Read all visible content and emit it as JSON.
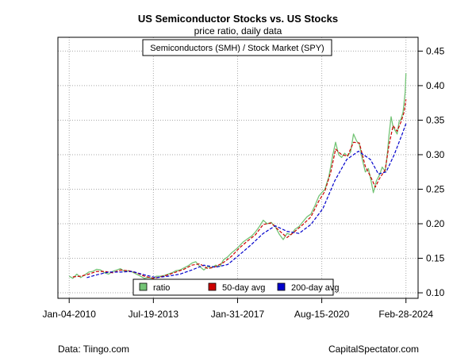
{
  "chart_data": {
    "type": "line",
    "title": "US Semiconductor Stocks vs. US Stocks",
    "subtitle": "price ratio, daily data",
    "annotation": "Semiconductors (SMH) / Stock Market (SPY)",
    "x_tick_labels": [
      "Jan-04-2010",
      "Jul-19-2013",
      "Jan-31-2017",
      "Aug-15-2020",
      "Feb-28-2024"
    ],
    "x_ticks": [
      "2010-01-04",
      "2013-07-19",
      "2017-01-31",
      "2020-08-15",
      "2024-02-28"
    ],
    "xlim": [
      "2009-07-15",
      "2024-09-01"
    ],
    "y_ticks": [
      0.1,
      0.15,
      0.2,
      0.25,
      0.3,
      0.35,
      0.4,
      0.45
    ],
    "y_tick_labels": [
      "0.10",
      "0.15",
      "0.20",
      "0.25",
      "0.30",
      "0.35",
      "0.40",
      "0.45"
    ],
    "ylim": [
      0.092,
      0.47
    ],
    "y_axis_side": "right",
    "grid": true,
    "legend_position": "bottom-center",
    "series": [
      {
        "name": "ratio",
        "color": "#74c476",
        "style": "solid",
        "points": [
          [
            "2010-01-04",
            0.124
          ],
          [
            "2010-03-01",
            0.121
          ],
          [
            "2010-05-01",
            0.127
          ],
          [
            "2010-07-01",
            0.122
          ],
          [
            "2010-09-01",
            0.126
          ],
          [
            "2010-11-01",
            0.13
          ],
          [
            "2011-01-01",
            0.131
          ],
          [
            "2011-03-01",
            0.134
          ],
          [
            "2011-05-01",
            0.133
          ],
          [
            "2011-07-01",
            0.129
          ],
          [
            "2011-09-01",
            0.127
          ],
          [
            "2011-11-01",
            0.131
          ],
          [
            "2012-01-01",
            0.133
          ],
          [
            "2012-03-01",
            0.135
          ],
          [
            "2012-05-01",
            0.131
          ],
          [
            "2012-07-01",
            0.132
          ],
          [
            "2012-09-01",
            0.13
          ],
          [
            "2012-11-01",
            0.127
          ],
          [
            "2013-01-01",
            0.124
          ],
          [
            "2013-03-01",
            0.121
          ],
          [
            "2013-05-01",
            0.122
          ],
          [
            "2013-07-19",
            0.121
          ],
          [
            "2013-09-01",
            0.124
          ],
          [
            "2013-11-01",
            0.124
          ],
          [
            "2014-01-01",
            0.125
          ],
          [
            "2014-03-01",
            0.127
          ],
          [
            "2014-05-01",
            0.129
          ],
          [
            "2014-07-01",
            0.132
          ],
          [
            "2014-09-01",
            0.133
          ],
          [
            "2014-11-01",
            0.136
          ],
          [
            "2015-01-01",
            0.139
          ],
          [
            "2015-03-01",
            0.143
          ],
          [
            "2015-05-01",
            0.145
          ],
          [
            "2015-07-01",
            0.138
          ],
          [
            "2015-09-01",
            0.133
          ],
          [
            "2015-11-01",
            0.138
          ],
          [
            "2016-01-01",
            0.136
          ],
          [
            "2016-03-01",
            0.14
          ],
          [
            "2016-05-01",
            0.138
          ],
          [
            "2016-07-01",
            0.148
          ],
          [
            "2016-09-01",
            0.152
          ],
          [
            "2016-11-01",
            0.158
          ],
          [
            "2017-01-31",
            0.165
          ],
          [
            "2017-03-01",
            0.168
          ],
          [
            "2017-05-01",
            0.174
          ],
          [
            "2017-07-01",
            0.178
          ],
          [
            "2017-09-01",
            0.182
          ],
          [
            "2017-11-01",
            0.188
          ],
          [
            "2018-01-01",
            0.196
          ],
          [
            "2018-03-01",
            0.205
          ],
          [
            "2018-05-01",
            0.2
          ],
          [
            "2018-07-01",
            0.202
          ],
          [
            "2018-09-01",
            0.196
          ],
          [
            "2018-11-01",
            0.185
          ],
          [
            "2019-01-01",
            0.177
          ],
          [
            "2019-03-01",
            0.186
          ],
          [
            "2019-05-01",
            0.184
          ],
          [
            "2019-07-01",
            0.192
          ],
          [
            "2019-09-01",
            0.196
          ],
          [
            "2019-11-01",
            0.203
          ],
          [
            "2020-01-01",
            0.21
          ],
          [
            "2020-03-01",
            0.214
          ],
          [
            "2020-05-01",
            0.226
          ],
          [
            "2020-07-01",
            0.24
          ],
          [
            "2020-08-15",
            0.245
          ],
          [
            "2020-10-01",
            0.25
          ],
          [
            "2020-12-01",
            0.268
          ],
          [
            "2021-02-01",
            0.3
          ],
          [
            "2021-03-15",
            0.318
          ],
          [
            "2021-05-01",
            0.3
          ],
          [
            "2021-06-15",
            0.296
          ],
          [
            "2021-08-01",
            0.302
          ],
          [
            "2021-09-15",
            0.298
          ],
          [
            "2021-11-01",
            0.304
          ],
          [
            "2021-12-15",
            0.33
          ],
          [
            "2022-02-01",
            0.32
          ],
          [
            "2022-03-15",
            0.315
          ],
          [
            "2022-05-01",
            0.292
          ],
          [
            "2022-06-15",
            0.275
          ],
          [
            "2022-08-01",
            0.28
          ],
          [
            "2022-09-15",
            0.26
          ],
          [
            "2022-10-15",
            0.245
          ],
          [
            "2022-12-01",
            0.262
          ],
          [
            "2023-01-15",
            0.27
          ],
          [
            "2023-03-01",
            0.282
          ],
          [
            "2023-04-15",
            0.276
          ],
          [
            "2023-05-15",
            0.298
          ],
          [
            "2023-06-15",
            0.33
          ],
          [
            "2023-07-15",
            0.355
          ],
          [
            "2023-08-15",
            0.34
          ],
          [
            "2023-09-15",
            0.335
          ],
          [
            "2023-10-15",
            0.33
          ],
          [
            "2023-11-15",
            0.348
          ],
          [
            "2023-12-15",
            0.352
          ],
          [
            "2024-01-15",
            0.362
          ],
          [
            "2024-02-15",
            0.39
          ],
          [
            "2024-02-28",
            0.418
          ]
        ]
      },
      {
        "name": "50-day avg",
        "color": "#cc0000",
        "style": "dashed",
        "points": [
          [
            "2010-03-01",
            0.123
          ],
          [
            "2010-07-01",
            0.124
          ],
          [
            "2010-11-01",
            0.127
          ],
          [
            "2011-03-01",
            0.131
          ],
          [
            "2011-07-01",
            0.131
          ],
          [
            "2011-11-01",
            0.129
          ],
          [
            "2012-03-01",
            0.133
          ],
          [
            "2012-07-01",
            0.132
          ],
          [
            "2012-11-01",
            0.129
          ],
          [
            "2013-03-01",
            0.124
          ],
          [
            "2013-07-19",
            0.121
          ],
          [
            "2013-11-01",
            0.123
          ],
          [
            "2014-03-01",
            0.126
          ],
          [
            "2014-07-01",
            0.13
          ],
          [
            "2014-11-01",
            0.134
          ],
          [
            "2015-03-01",
            0.14
          ],
          [
            "2015-07-01",
            0.142
          ],
          [
            "2015-11-01",
            0.135
          ],
          [
            "2016-03-01",
            0.138
          ],
          [
            "2016-07-01",
            0.144
          ],
          [
            "2016-11-01",
            0.153
          ],
          [
            "2017-03-01",
            0.165
          ],
          [
            "2017-07-01",
            0.175
          ],
          [
            "2017-11-01",
            0.184
          ],
          [
            "2018-03-01",
            0.199
          ],
          [
            "2018-07-01",
            0.201
          ],
          [
            "2018-11-01",
            0.19
          ],
          [
            "2019-03-01",
            0.18
          ],
          [
            "2019-07-01",
            0.189
          ],
          [
            "2019-11-01",
            0.199
          ],
          [
            "2020-03-01",
            0.21
          ],
          [
            "2020-07-01",
            0.233
          ],
          [
            "2020-10-01",
            0.247
          ],
          [
            "2021-01-01",
            0.275
          ],
          [
            "2021-03-15",
            0.308
          ],
          [
            "2021-06-15",
            0.3
          ],
          [
            "2021-09-15",
            0.298
          ],
          [
            "2021-12-15",
            0.318
          ],
          [
            "2022-03-15",
            0.317
          ],
          [
            "2022-06-15",
            0.283
          ],
          [
            "2022-09-15",
            0.266
          ],
          [
            "2022-11-15",
            0.253
          ],
          [
            "2023-01-15",
            0.265
          ],
          [
            "2023-04-15",
            0.278
          ],
          [
            "2023-06-15",
            0.315
          ],
          [
            "2023-08-15",
            0.342
          ],
          [
            "2023-10-15",
            0.334
          ],
          [
            "2023-12-15",
            0.348
          ],
          [
            "2024-02-01",
            0.362
          ],
          [
            "2024-02-28",
            0.38
          ]
        ]
      },
      {
        "name": "200-day avg",
        "color": "#0000cc",
        "style": "dashed",
        "points": [
          [
            "2010-10-01",
            0.122
          ],
          [
            "2011-03-01",
            0.126
          ],
          [
            "2011-09-01",
            0.13
          ],
          [
            "2012-03-01",
            0.13
          ],
          [
            "2012-09-01",
            0.131
          ],
          [
            "2013-03-01",
            0.126
          ],
          [
            "2013-09-01",
            0.122
          ],
          [
            "2014-03-01",
            0.124
          ],
          [
            "2014-09-01",
            0.127
          ],
          [
            "2015-03-01",
            0.133
          ],
          [
            "2015-09-01",
            0.14
          ],
          [
            "2016-03-01",
            0.137
          ],
          [
            "2016-09-01",
            0.141
          ],
          [
            "2017-03-01",
            0.155
          ],
          [
            "2017-09-01",
            0.17
          ],
          [
            "2018-03-01",
            0.186
          ],
          [
            "2018-09-01",
            0.197
          ],
          [
            "2019-03-01",
            0.189
          ],
          [
            "2019-09-01",
            0.186
          ],
          [
            "2020-03-01",
            0.199
          ],
          [
            "2020-09-01",
            0.222
          ],
          [
            "2021-03-01",
            0.262
          ],
          [
            "2021-09-01",
            0.293
          ],
          [
            "2022-03-01",
            0.305
          ],
          [
            "2022-09-01",
            0.293
          ],
          [
            "2023-01-01",
            0.272
          ],
          [
            "2023-05-01",
            0.275
          ],
          [
            "2023-09-01",
            0.3
          ],
          [
            "2024-01-01",
            0.33
          ],
          [
            "2024-02-28",
            0.345
          ]
        ]
      }
    ],
    "legend": [
      {
        "label": "ratio",
        "color": "#74c476"
      },
      {
        "label": "50-day avg",
        "color": "#cc0000"
      },
      {
        "label": "200-day avg",
        "color": "#0000cc"
      }
    ]
  },
  "footer": {
    "source_left": "Data: Tiingo.com",
    "source_right": "CapitalSpectator.com"
  }
}
